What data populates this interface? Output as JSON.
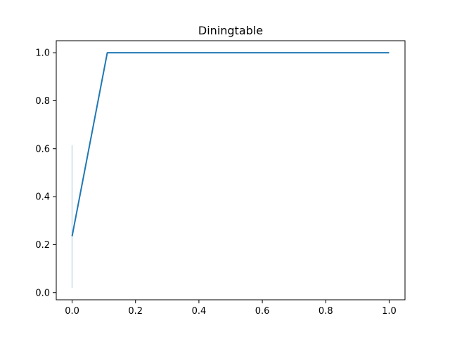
{
  "chart_data": {
    "type": "line",
    "title": "Diningtable",
    "xlabel": "",
    "ylabel": "",
    "xlim": [
      -0.05,
      1.05
    ],
    "ylim": [
      -0.03,
      1.05
    ],
    "grid": false,
    "xticks": [
      {
        "value": 0.0,
        "label": "0.0"
      },
      {
        "value": 0.2,
        "label": "0.2"
      },
      {
        "value": 0.4,
        "label": "0.4"
      },
      {
        "value": 0.6,
        "label": "0.6"
      },
      {
        "value": 0.8,
        "label": "0.8"
      },
      {
        "value": 1.0,
        "label": "1.0"
      }
    ],
    "yticks": [
      {
        "value": 0.0,
        "label": "0.0"
      },
      {
        "value": 0.2,
        "label": "0.2"
      },
      {
        "value": 0.4,
        "label": "0.4"
      },
      {
        "value": 0.6,
        "label": "0.6"
      },
      {
        "value": 0.8,
        "label": "0.8"
      },
      {
        "value": 1.0,
        "label": "1.0"
      }
    ],
    "series": [
      {
        "color": "#1f77b4",
        "x": [
          0.0,
          0.111,
          1.0
        ],
        "y": [
          0.235,
          1.0,
          1.0
        ]
      }
    ],
    "band": {
      "color": "#1f77b4",
      "x": 0.0,
      "y_low": 0.02,
      "y_high": 0.615
    }
  }
}
